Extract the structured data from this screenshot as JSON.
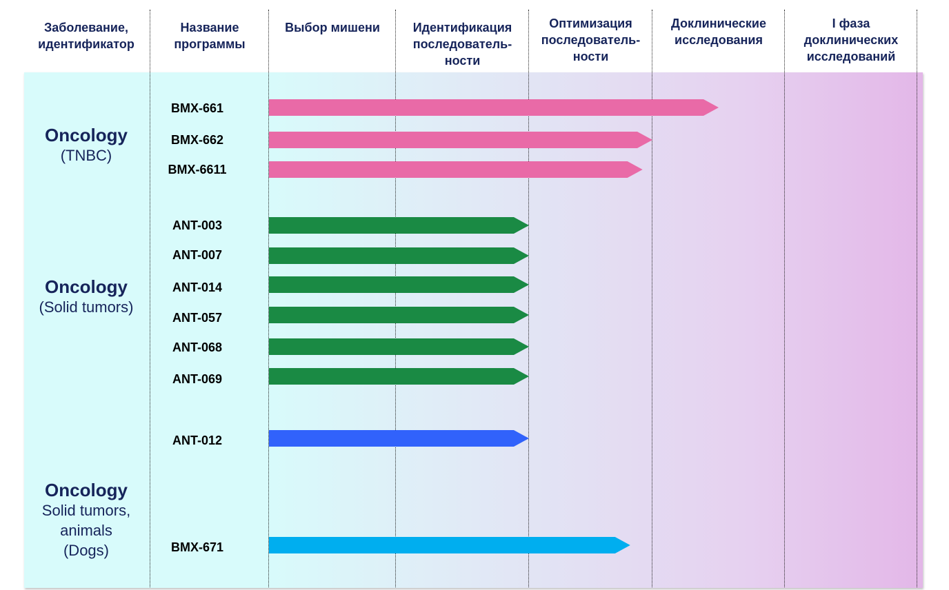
{
  "headers": [
    "Заболевание,\nидентификатор",
    "Название\nпрограммы",
    "Выбор мишени",
    "Идентификация\nпоследователь-\nности",
    "Оптимизация\nпоследователь-\nности",
    "Доклинические\nисследования",
    "I фаза\nдоклинических\nисследований"
  ],
  "diseases": [
    {
      "name": "Oncology",
      "sub": "(TNBC)"
    },
    {
      "name": "Oncology",
      "sub": "(Solid tumors)"
    },
    {
      "name": "Oncology",
      "sub": "Solid tumors,\nanimals\n(Dogs)"
    }
  ],
  "colors": {
    "pink": "#e96aa7",
    "green": "#1a8a44",
    "blue": "#3162fb",
    "cyan": "#00aeef",
    "header_text": "#16245a"
  },
  "programs": [
    {
      "name": "BMX-661",
      "progress": 3.5,
      "color": "pink"
    },
    {
      "name": "BMX-662",
      "progress": 3.0,
      "color": "pink"
    },
    {
      "name": "BMX-6611",
      "progress": 2.92,
      "color": "pink"
    },
    {
      "name": "ANT-003",
      "progress": 2.0,
      "color": "green"
    },
    {
      "name": "ANT-007",
      "progress": 2.0,
      "color": "green"
    },
    {
      "name": "ANT-014",
      "progress": 2.0,
      "color": "green"
    },
    {
      "name": "ANT-057",
      "progress": 2.0,
      "color": "green"
    },
    {
      "name": "ANT-068",
      "progress": 2.0,
      "color": "green"
    },
    {
      "name": "ANT-069",
      "progress": 2.0,
      "color": "green"
    },
    {
      "name": "ANT-012",
      "progress": 2.0,
      "color": "blue"
    },
    {
      "name": "BMX-671",
      "progress": 2.82,
      "color": "cyan"
    }
  ]
}
